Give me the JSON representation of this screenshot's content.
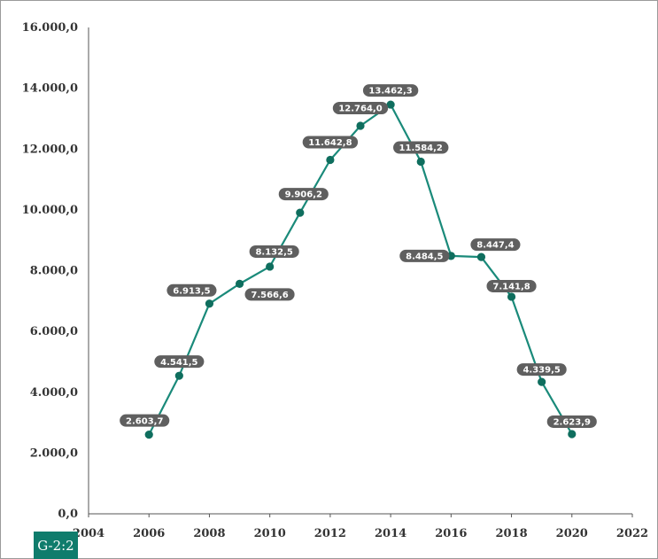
{
  "badge": "G-2:2",
  "colors": {
    "line": "#1a8a7a",
    "marker": "#0f6e5e",
    "label_bg": "#5f5f5f",
    "badge_bg": "#0f7c6c"
  },
  "chart_data": {
    "type": "line",
    "x": [
      2006,
      2007,
      2008,
      2009,
      2010,
      2011,
      2012,
      2013,
      2014,
      2015,
      2016,
      2017,
      2018,
      2019,
      2020
    ],
    "values": [
      2603.7,
      4541.5,
      6913.5,
      7566.6,
      8132.5,
      9906.2,
      11642.8,
      12764.0,
      13462.3,
      11584.2,
      8484.5,
      8447.4,
      7141.8,
      4339.5,
      2623.9
    ],
    "data_labels": [
      "2.603,7",
      "4.541,5",
      "6.913,5",
      "7.566,6",
      "8.132,5",
      "9.906,2",
      "11.642,8",
      "12.764,0",
      "13.462,3",
      "11.584,2",
      "8.484,5",
      "8.447,4",
      "7.141,8",
      "4.339,5",
      "2.623,9"
    ],
    "xlim": [
      2004,
      2022
    ],
    "ylim": [
      0,
      16000
    ],
    "x_ticks": [
      "2004",
      "2006",
      "2008",
      "2010",
      "2012",
      "2014",
      "2016",
      "2018",
      "2020",
      "2022"
    ],
    "y_ticks": [
      "0,0",
      "2.000,0",
      "4.000,0",
      "6.000,0",
      "8.000,0",
      "10.000,0",
      "12.000,0",
      "14.000,0",
      "16.000,0"
    ],
    "grid": false,
    "legend": "none"
  }
}
